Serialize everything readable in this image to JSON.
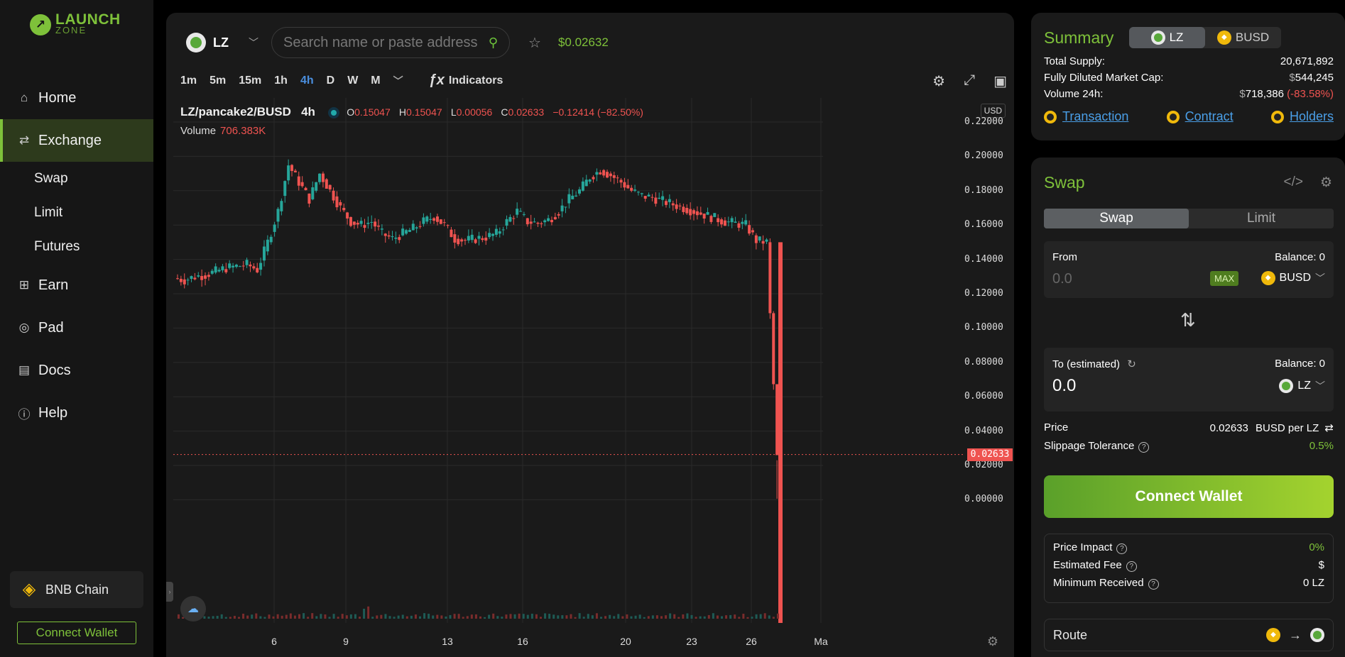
{
  "app": {
    "logo_line1": "LAUNCH",
    "logo_line2": "ZONE",
    "accent": "#7ec13a"
  },
  "sidebar": {
    "items": [
      {
        "label": "Home",
        "icon": "home-icon"
      },
      {
        "label": "Exchange",
        "icon": "exchange-icon"
      },
      {
        "label": "Swap"
      },
      {
        "label": "Limit"
      },
      {
        "label": "Futures"
      },
      {
        "label": "Earn",
        "icon": "grid-icon"
      },
      {
        "label": "Pad",
        "icon": "gamepad-icon"
      },
      {
        "label": "Docs",
        "icon": "book-icon"
      },
      {
        "label": "Help",
        "icon": "info-icon"
      }
    ],
    "chain": "BNB Chain",
    "connect_label": "Connect Wallet"
  },
  "topbar": {
    "token": "LZ",
    "search_placeholder": "Search name or paste address",
    "price": "$0.02632"
  },
  "timeframes": [
    "1m",
    "5m",
    "15m",
    "1h",
    "4h",
    "D",
    "W",
    "M"
  ],
  "active_timeframe": "4h",
  "indicators_label": "Indicators",
  "legend": {
    "pair": "LZ/pancake2/BUSD",
    "interval": "4h",
    "o": "0.15047",
    "h": "0.15047",
    "l": "0.00056",
    "c": "0.02633",
    "change": "−0.12414 (−82.50%)",
    "volume_label": "Volume",
    "volume": "706.383K"
  },
  "chart_data": {
    "type": "candlestick",
    "currency": "USD",
    "y_ticks": [
      "0.22000",
      "0.20000",
      "0.18000",
      "0.16000",
      "0.14000",
      "0.12000",
      "0.10000",
      "0.08000",
      "0.06000",
      "0.04000",
      "0.02000",
      "0.00000"
    ],
    "ylim": [
      0,
      0.22
    ],
    "x_ticks": [
      "6",
      "9",
      "13",
      "16",
      "20",
      "23",
      "26",
      "Ma"
    ],
    "last_price": "0.02633",
    "close_path": [
      0.129,
      0.128,
      0.13,
      0.131,
      0.133,
      0.135,
      0.136,
      0.137,
      0.134,
      0.15,
      0.168,
      0.195,
      0.185,
      0.175,
      0.19,
      0.18,
      0.17,
      0.162,
      0.16,
      0.162,
      0.155,
      0.152,
      0.155,
      0.158,
      0.162,
      0.165,
      0.16,
      0.152,
      0.151,
      0.152,
      0.153,
      0.155,
      0.162,
      0.168,
      0.162,
      0.161,
      0.163,
      0.168,
      0.175,
      0.18,
      0.188,
      0.192,
      0.189,
      0.185,
      0.18,
      0.177,
      0.176,
      0.174,
      0.172,
      0.17,
      0.168,
      0.166,
      0.164,
      0.162,
      0.161,
      0.16,
      0.151,
      0.15,
      0.026
    ]
  },
  "summary": {
    "title": "Summary",
    "tab_a": "LZ",
    "tab_b": "BUSD",
    "total_supply_label": "Total Supply:",
    "total_supply": "20,671,892",
    "fdmc_label": "Fully Diluted Market Cap:",
    "fdmc_prefix": "$",
    "fdmc": "544,245",
    "vol_label": "Volume 24h:",
    "vol_prefix": "$",
    "vol": "718,386",
    "vol_change": "(-83.58%)",
    "link_tx": "Transaction",
    "link_contract": "Contract",
    "link_holders": "Holders"
  },
  "swap": {
    "title": "Swap",
    "tab_swap": "Swap",
    "tab_limit": "Limit",
    "from_label": "From",
    "from_balance": "Balance: 0",
    "from_amount": "0.0",
    "max": "MAX",
    "from_token": "BUSD",
    "to_label": "To (estimated)",
    "to_balance": "Balance: 0",
    "to_amount": "0.0",
    "to_token": "LZ",
    "price_label": "Price",
    "price_value": "0.02633",
    "price_unit": "BUSD per LZ",
    "slip_label": "Slippage Tolerance",
    "slip_value": "0.5%",
    "connect_label": "Connect Wallet",
    "impact_label": "Price Impact",
    "impact_value": "0%",
    "fee_label": "Estimated Fee",
    "fee_value": "$",
    "min_label": "Minimum Received",
    "min_value": "0 LZ",
    "route_label": "Route"
  }
}
